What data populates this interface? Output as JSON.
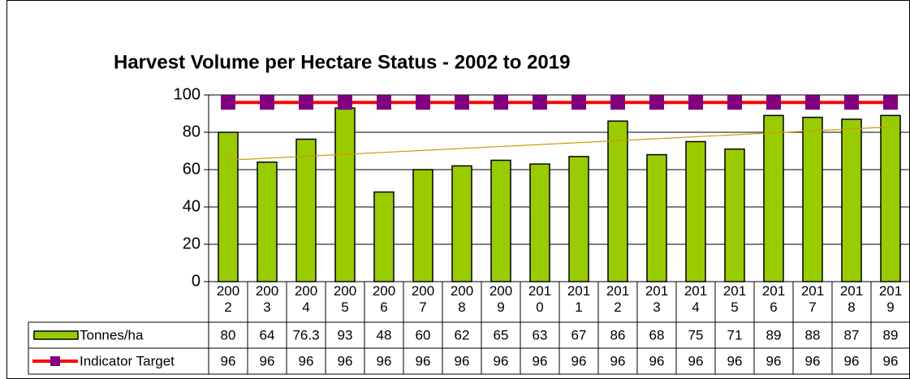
{
  "chart_data": {
    "type": "bar",
    "title": "Harvest Volume per Hectare Status - 2002 to 2019",
    "categories": [
      "2002",
      "2003",
      "2004",
      "2005",
      "2006",
      "2007",
      "2008",
      "2009",
      "2010",
      "2011",
      "2012",
      "2013",
      "2014",
      "2015",
      "2016",
      "2017",
      "2018",
      "2019"
    ],
    "series": [
      {
        "name": "Tonnes/ha",
        "type": "bar",
        "color": "#99cc00",
        "values": [
          80,
          64,
          76.3,
          93,
          48,
          60,
          62,
          65,
          63,
          67,
          86,
          68,
          75,
          71,
          89,
          88,
          87,
          89
        ]
      },
      {
        "name": "Indicator Target",
        "type": "line",
        "color": "#ff0000",
        "marker_color": "#800080",
        "values": [
          96,
          96,
          96,
          96,
          96,
          96,
          96,
          96,
          96,
          96,
          96,
          96,
          96,
          96,
          96,
          96,
          96,
          96
        ]
      }
    ],
    "ylim": [
      0,
      100
    ],
    "yticks": [
      0,
      20,
      40,
      60,
      80,
      100
    ],
    "grid": true,
    "trendline": true,
    "trendline_color": "#cc9900",
    "data_table": true
  }
}
